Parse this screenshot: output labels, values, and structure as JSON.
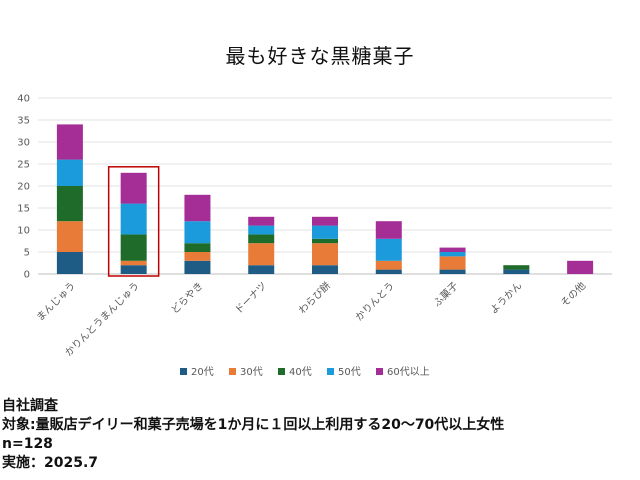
{
  "chart_data": {
    "type": "bar",
    "stacked": true,
    "title": "最も好きな黒糖菓子",
    "categories": [
      "まんじゅう",
      "かりんとうまんじゅう",
      "どらやき",
      "ドーナツ",
      "わらび餅",
      "かりんとう",
      "ふ菓子",
      "ようかん",
      "その他"
    ],
    "series": [
      {
        "name": "20代",
        "color": "#1F5C85",
        "values": [
          5,
          2,
          3,
          2,
          2,
          1,
          1,
          1,
          0
        ]
      },
      {
        "name": "30代",
        "color": "#E87B37",
        "values": [
          7,
          1,
          2,
          5,
          5,
          2,
          3,
          0,
          0
        ]
      },
      {
        "name": "40代",
        "color": "#1F6B2A",
        "values": [
          8,
          6,
          2,
          2,
          1,
          0,
          0,
          1,
          0
        ]
      },
      {
        "name": "50代",
        "color": "#1B9BDB",
        "values": [
          6,
          7,
          5,
          2,
          3,
          5,
          1,
          0,
          0
        ]
      },
      {
        "name": "60代以上",
        "color": "#A52D96",
        "values": [
          8,
          7,
          6,
          2,
          2,
          4,
          1,
          0,
          3
        ]
      }
    ],
    "yticks": [
      "0",
      "5",
      "10",
      "15",
      "20",
      "25",
      "30",
      "35",
      "40"
    ],
    "ylim": [
      0,
      40
    ],
    "grid": true,
    "legend_position": "bottom",
    "highlight_category": "かりんとうまんじゅう",
    "highlight_color": "#C00000"
  },
  "notes": {
    "source": "自社調査",
    "target": "対象:量販店デイリー和菓子売場を1か月に１回以上利用する20～70代以上女性",
    "n": "n=128",
    "date": "実施：2025.7"
  }
}
